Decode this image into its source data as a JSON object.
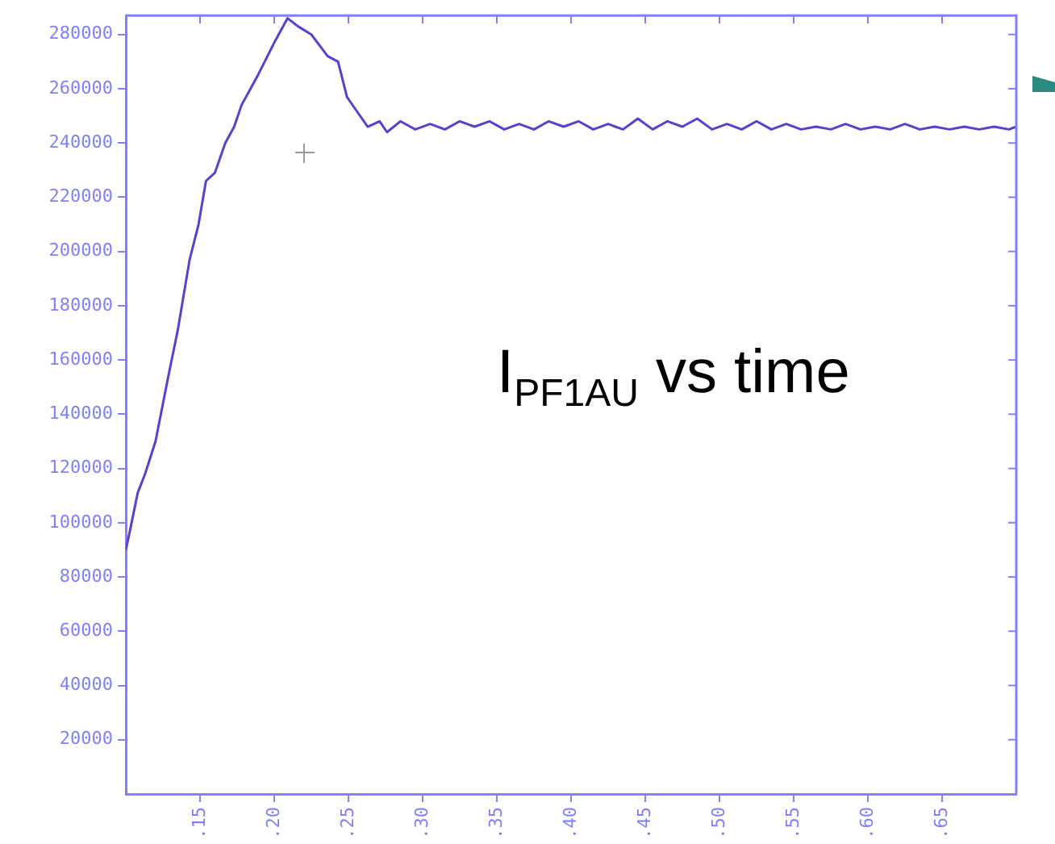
{
  "chart_data": {
    "type": "line",
    "annotations": [
      "I$_{PF1AU}$ vs time"
    ],
    "x": [
      0.1,
      0.102,
      0.108,
      0.113,
      0.12,
      0.129,
      0.135,
      0.143,
      0.149,
      0.154,
      0.16,
      0.167,
      0.173,
      0.178,
      0.189,
      0.2,
      0.209,
      0.216,
      0.225,
      0.236,
      0.243,
      0.249,
      0.254,
      0.263,
      0.271,
      0.276,
      0.285,
      0.295,
      0.305,
      0.315,
      0.325,
      0.335,
      0.345,
      0.355,
      0.365,
      0.375,
      0.385,
      0.395,
      0.405,
      0.415,
      0.425,
      0.435,
      0.445,
      0.455,
      0.465,
      0.475,
      0.485,
      0.495,
      0.505,
      0.515,
      0.525,
      0.535,
      0.545,
      0.555,
      0.565,
      0.575,
      0.585,
      0.595,
      0.605,
      0.615,
      0.625,
      0.635,
      0.645,
      0.655,
      0.665,
      0.675,
      0.685,
      0.695,
      0.7
    ],
    "series": [
      {
        "color": "#5a3fd0",
        "values": [
          90000,
          95000,
          111000,
          118000,
          130000,
          155000,
          171000,
          197000,
          210000,
          226000,
          229000,
          240000,
          246000,
          254000,
          265000,
          277000,
          286000,
          283000,
          280000,
          272000,
          270000,
          257000,
          253000,
          246000,
          248000,
          244000,
          248000,
          245000,
          247000,
          245000,
          248000,
          246000,
          248000,
          245000,
          247000,
          245000,
          248000,
          246000,
          248000,
          245000,
          247000,
          245000,
          249000,
          245000,
          248000,
          246000,
          249000,
          245000,
          247000,
          245000,
          248000,
          245000,
          247000,
          245000,
          246000,
          245000,
          247000,
          245000,
          246000,
          245000,
          247000,
          245000,
          246000,
          245000,
          246000,
          245000,
          246000,
          245000,
          246000
        ]
      }
    ],
    "xlim": [
      0.1,
      0.7
    ],
    "xticks": [
      {
        "value": 0.15,
        "label": ".15"
      },
      {
        "value": 0.2,
        "label": ".20"
      },
      {
        "value": 0.25,
        "label": ".25"
      },
      {
        "value": 0.3,
        "label": ".30"
      },
      {
        "value": 0.35,
        "label": ".35"
      },
      {
        "value": 0.4,
        "label": ".40"
      },
      {
        "value": 0.45,
        "label": ".45"
      },
      {
        "value": 0.5,
        "label": ".50"
      },
      {
        "value": 0.55,
        "label": ".55"
      },
      {
        "value": 0.6,
        "label": ".60"
      },
      {
        "value": 0.65,
        "label": ".65"
      }
    ],
    "ylim": [
      0,
      287000
    ],
    "yticks": [
      20000,
      40000,
      60000,
      80000,
      100000,
      120000,
      140000,
      160000,
      180000,
      200000,
      220000,
      240000,
      260000,
      280000
    ],
    "marker": "none",
    "line_style": "solid"
  }
}
